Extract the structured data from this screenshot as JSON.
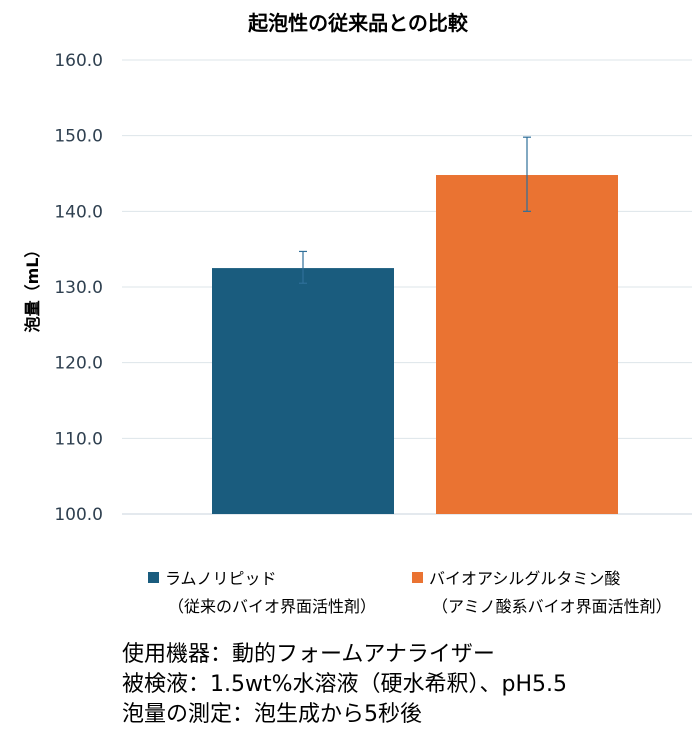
{
  "chart_data": {
    "type": "bar",
    "title": "起泡性の従来品との比較",
    "ylabel": "泡量（mL）",
    "xlabel": "",
    "ylim": [
      100,
      160
    ],
    "yticks": [
      "100.0",
      "110.0",
      "120.0",
      "130.0",
      "140.0",
      "150.0",
      "160.0"
    ],
    "yticks_values": [
      100,
      110,
      120,
      130,
      140,
      150,
      160
    ],
    "categories": [
      "ラムノリピッド",
      "バイオアシルグルタミン酸"
    ],
    "values": [
      132.5,
      144.8
    ],
    "error_low": [
      130.5,
      140.0
    ],
    "error_high": [
      134.7,
      149.8
    ],
    "colors": [
      "#1a5c7e",
      "#ea7332"
    ],
    "grid": true
  },
  "legend": [
    {
      "label": "ラムノリピッド",
      "sub": "（従来のバイオ界面活性剤）",
      "color": "#1a5c7e"
    },
    {
      "label": "バイオアシルグルタミン酸",
      "sub": "（アミノ酸系バイオ界面活性剤）",
      "color": "#ea7332"
    }
  ],
  "notes": [
    "使用機器：動的フォームアナライザー",
    "被検液：1.5wt%水溶液（硬水希釈）、pH5.5",
    "泡量の測定：泡生成から5秒後"
  ]
}
